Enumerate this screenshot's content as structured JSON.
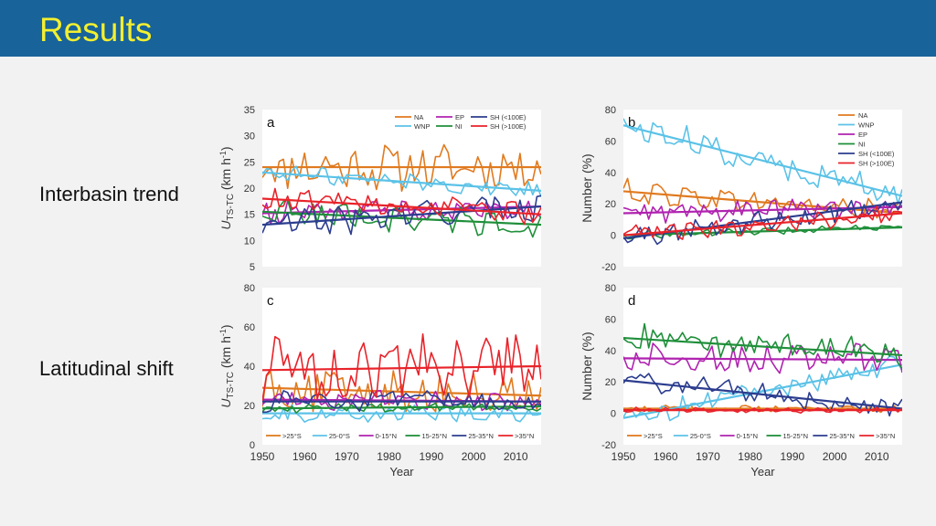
{
  "slide": {
    "title": "Results"
  },
  "row_labels": [
    "Interbasin trend",
    "Latitudinal shift"
  ],
  "colors": {
    "header": "#17639a",
    "title": "#f3ef2f"
  },
  "chart_data": [
    {
      "type": "line",
      "panel": "a",
      "ylabel": "U_TS-TC (km h-1)",
      "ylim": [
        5,
        35
      ],
      "yticks": [
        5,
        10,
        15,
        20,
        25,
        30,
        35
      ],
      "xlim": [
        1950,
        2016
      ],
      "xticks": [],
      "xlabel": "",
      "legend_position": "top",
      "series": [
        {
          "name": "NA",
          "color": "#e07a1f",
          "mean": 24,
          "amp": 3.8,
          "trend": [
            24,
            24
          ]
        },
        {
          "name": "WNP",
          "color": "#5bc2e7",
          "mean": 21.5,
          "amp": 1.4,
          "trend": [
            23,
            19.5
          ]
        },
        {
          "name": "EP",
          "color": "#b023b0",
          "mean": 15.5,
          "amp": 1.8,
          "trend": [
            15.2,
            16.5
          ]
        },
        {
          "name": "NI",
          "color": "#1f8f3a",
          "mean": 14.5,
          "amp": 2.2,
          "trend": [
            15.5,
            13
          ]
        },
        {
          "name": "SH (<100E)",
          "color": "#2c3d8f",
          "mean": 15,
          "amp": 2.5,
          "trend": [
            13,
            16.5
          ]
        },
        {
          "name": "SH (>100E)",
          "color": "#e8232a",
          "mean": 16.5,
          "amp": 1.8,
          "trend": [
            18,
            15
          ]
        }
      ]
    },
    {
      "type": "line",
      "panel": "b",
      "ylabel": "Number (%)",
      "ylim": [
        -20,
        80
      ],
      "yticks": [
        -20,
        0,
        20,
        40,
        60,
        80
      ],
      "xlim": [
        1950,
        2016
      ],
      "xticks": [],
      "xlabel": "",
      "legend_position": "top-right",
      "series": [
        {
          "name": "NA",
          "color": "#e07a1f",
          "mean": 22,
          "amp": 7,
          "trend": [
            28,
            14
          ]
        },
        {
          "name": "WNP",
          "color": "#5bc2e7",
          "mean": 45,
          "amp": 8,
          "trend": [
            70,
            25
          ]
        },
        {
          "name": "EP",
          "color": "#b023b0",
          "mean": 15,
          "amp": 6,
          "trend": [
            14,
            18
          ]
        },
        {
          "name": "NI",
          "color": "#1f8f3a",
          "mean": 3,
          "amp": 2,
          "trend": [
            0,
            5
          ]
        },
        {
          "name": "SH (<100E)",
          "color": "#2c3d8f",
          "mean": 10,
          "amp": 6,
          "trend": [
            -2,
            21
          ]
        },
        {
          "name": "SH (>100E)",
          "color": "#e8232a",
          "mean": 8,
          "amp": 5,
          "trend": [
            0,
            14
          ]
        }
      ]
    },
    {
      "type": "line",
      "panel": "c",
      "ylabel": "U_TS-TC (km h-1)",
      "ylim": [
        0,
        80
      ],
      "yticks": [
        0,
        20,
        40,
        60,
        80
      ],
      "xlim": [
        1950,
        2016
      ],
      "xticks": [
        1950,
        1960,
        1970,
        1980,
        1990,
        2000,
        2010
      ],
      "xlabel": "Year",
      "legend_position": "bottom",
      "series": [
        {
          "name": ">25°S",
          "color": "#e07a1f",
          "mean": 25,
          "amp": 10,
          "trend": [
            29,
            25
          ]
        },
        {
          "name": "25-0°S",
          "color": "#5bc2e7",
          "mean": 15,
          "amp": 4,
          "trend": [
            16,
            16
          ]
        },
        {
          "name": "0-15°N",
          "color": "#b023b0",
          "mean": 22,
          "amp": 4,
          "trend": [
            23,
            22
          ]
        },
        {
          "name": "15-25°N",
          "color": "#1f8f3a",
          "mean": 19,
          "amp": 2,
          "trend": [
            18.5,
            19.5
          ]
        },
        {
          "name": "25-35°N",
          "color": "#2c3d8f",
          "mean": 22,
          "amp": 5,
          "trend": [
            22,
            22
          ]
        },
        {
          "name": ">35°N",
          "color": "#e8232a",
          "mean": 40,
          "amp": 14,
          "trend": [
            38,
            40
          ]
        }
      ]
    },
    {
      "type": "line",
      "panel": "d",
      "ylabel": "Number (%)",
      "ylim": [
        -20,
        80
      ],
      "yticks": [
        -20,
        0,
        20,
        40,
        60,
        80
      ],
      "xlim": [
        1950,
        2016
      ],
      "xticks": [
        1950,
        1960,
        1970,
        1980,
        1990,
        2000,
        2010
      ],
      "xlabel": "Year",
      "legend_position": "bottom",
      "series": [
        {
          "name": ">25°S",
          "color": "#e07a1f",
          "mean": 3,
          "amp": 2,
          "trend": [
            3,
            3
          ]
        },
        {
          "name": "25-0°S",
          "color": "#5bc2e7",
          "mean": 14,
          "amp": 6,
          "trend": [
            -3,
            31
          ]
        },
        {
          "name": "0-15°N",
          "color": "#b023b0",
          "mean": 34,
          "amp": 8,
          "trend": [
            35,
            34
          ]
        },
        {
          "name": "15-25°N",
          "color": "#1f8f3a",
          "mean": 42,
          "amp": 8,
          "trend": [
            48,
            37
          ]
        },
        {
          "name": "25-35°N",
          "color": "#2c3d8f",
          "mean": 12,
          "amp": 6,
          "trend": [
            21,
            3
          ]
        },
        {
          "name": ">35°N",
          "color": "#e8232a",
          "mean": 2,
          "amp": 1.5,
          "trend": [
            2,
            2
          ]
        }
      ]
    }
  ]
}
